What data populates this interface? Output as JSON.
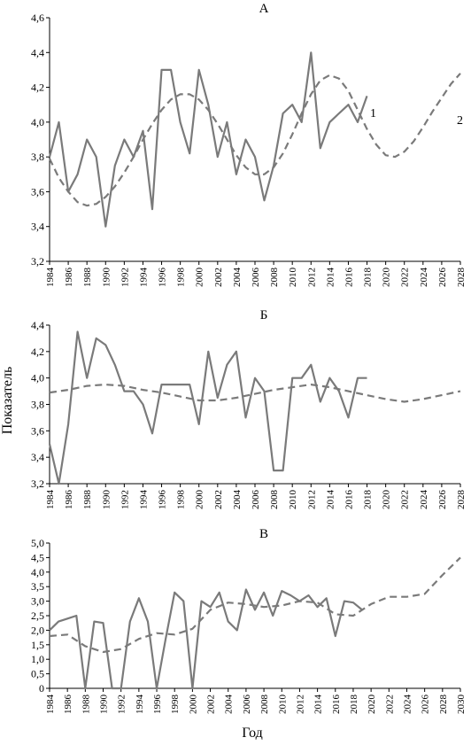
{
  "figure": {
    "ylabel": "Показатель",
    "xlabel": "Год"
  },
  "chart_data": [
    {
      "type": "line",
      "title": "А",
      "ylim": [
        3.2,
        4.6
      ],
      "yticks": [
        "3,2",
        "3,4",
        "3,6",
        "3,8",
        "4,0",
        "4,2",
        "4,4",
        "4,6"
      ],
      "xlim": [
        1984,
        2028
      ],
      "xticks": [
        "1984",
        "1986",
        "1988",
        "1990",
        "1992",
        "1994",
        "1996",
        "1998",
        "2000",
        "2002",
        "2004",
        "2006",
        "2008",
        "2010",
        "2012",
        "2014",
        "2016",
        "2018",
        "2020",
        "2022",
        "2024",
        "2026",
        "2028"
      ],
      "series": [
        {
          "name": "1",
          "style": "solid",
          "color": "#7a7a7a",
          "x": [
            1984,
            1985,
            1986,
            1987,
            1988,
            1989,
            1990,
            1991,
            1992,
            1993,
            1994,
            1995,
            1996,
            1997,
            1998,
            1999,
            2000,
            2001,
            2002,
            2003,
            2004,
            2005,
            2006,
            2007,
            2008,
            2009,
            2010,
            2011,
            2012,
            2013,
            2014,
            2015,
            2016,
            2017,
            2018
          ],
          "y": [
            3.8,
            4.0,
            3.6,
            3.7,
            3.9,
            3.8,
            3.4,
            3.75,
            3.9,
            3.8,
            3.95,
            3.5,
            4.3,
            4.3,
            4.0,
            3.82,
            4.3,
            4.1,
            3.8,
            4.0,
            3.7,
            3.9,
            3.8,
            3.55,
            3.75,
            4.05,
            4.1,
            4.0,
            4.4,
            3.85,
            4.0,
            4.05,
            4.1,
            4.0,
            4.15
          ]
        },
        {
          "name": "2",
          "style": "dashed",
          "color": "#7a7a7a",
          "x": [
            1984,
            1985,
            1986,
            1987,
            1988,
            1989,
            1990,
            1991,
            1992,
            1993,
            1994,
            1995,
            1996,
            1997,
            1998,
            1999,
            2000,
            2001,
            2002,
            2003,
            2004,
            2005,
            2006,
            2007,
            2008,
            2009,
            2010,
            2011,
            2012,
            2013,
            2014,
            2015,
            2016,
            2017,
            2018,
            2019,
            2020,
            2021,
            2022,
            2023,
            2024,
            2025,
            2026,
            2027,
            2028
          ],
          "y": [
            3.79,
            3.68,
            3.6,
            3.54,
            3.52,
            3.53,
            3.57,
            3.63,
            3.71,
            3.8,
            3.9,
            3.99,
            4.07,
            4.13,
            4.16,
            4.16,
            4.13,
            4.07,
            3.99,
            3.9,
            3.81,
            3.74,
            3.7,
            3.7,
            3.74,
            3.82,
            3.93,
            4.05,
            4.16,
            4.24,
            4.27,
            4.25,
            4.18,
            4.07,
            3.96,
            3.87,
            3.81,
            3.8,
            3.83,
            3.89,
            3.97,
            4.06,
            4.14,
            4.22,
            4.28
          ]
        }
      ]
    },
    {
      "type": "line",
      "title": "Б",
      "ylim": [
        3.2,
        4.4
      ],
      "yticks": [
        "3,2",
        "3,4",
        "3,6",
        "3,8",
        "4,0",
        "4,2",
        "4,4"
      ],
      "xlim": [
        1984,
        2028
      ],
      "xticks": [
        "1984",
        "1986",
        "1988",
        "1990",
        "1992",
        "1994",
        "1996",
        "1998",
        "2000",
        "2002",
        "2004",
        "2006",
        "2008",
        "2010",
        "2012",
        "2014",
        "2016",
        "2018",
        "2020",
        "2022",
        "2024",
        "2026",
        "2028"
      ],
      "series": [
        {
          "style": "solid",
          "color": "#7a7a7a",
          "x": [
            1984,
            1985,
            1986,
            1987,
            1988,
            1989,
            1990,
            1991,
            1992,
            1993,
            1994,
            1995,
            1996,
            1997,
            1998,
            1999,
            2000,
            2001,
            2002,
            2003,
            2004,
            2005,
            2006,
            2007,
            2008,
            2009,
            2010,
            2011,
            2012,
            2013,
            2014,
            2015,
            2016,
            2017,
            2018
          ],
          "y": [
            3.5,
            3.2,
            3.65,
            4.35,
            4.0,
            4.3,
            4.25,
            4.1,
            3.9,
            3.9,
            3.8,
            3.58,
            3.95,
            3.95,
            3.95,
            3.95,
            3.65,
            4.2,
            3.85,
            4.1,
            4.2,
            3.7,
            4.0,
            3.9,
            3.3,
            3.3,
            4.0,
            4.0,
            4.1,
            3.82,
            4.0,
            3.9,
            3.7,
            4.0,
            4.0
          ]
        },
        {
          "style": "dashed",
          "color": "#7a7a7a",
          "x": [
            1984,
            1986,
            1988,
            1990,
            1992,
            1994,
            1996,
            1998,
            2000,
            2002,
            2004,
            2006,
            2008,
            2010,
            2012,
            2014,
            2016,
            2018,
            2020,
            2022,
            2024,
            2026,
            2028
          ],
          "y": [
            3.89,
            3.91,
            3.94,
            3.95,
            3.94,
            3.91,
            3.89,
            3.86,
            3.83,
            3.83,
            3.85,
            3.88,
            3.91,
            3.93,
            3.95,
            3.93,
            3.9,
            3.87,
            3.84,
            3.82,
            3.84,
            3.87,
            3.9
          ]
        }
      ]
    },
    {
      "type": "line",
      "title": "В",
      "ylim": [
        0,
        5.0
      ],
      "yticks": [
        "0",
        "0,5",
        "1,0",
        "1,5",
        "2,0",
        "2,5",
        "3,0",
        "3,5",
        "4,0",
        "4,5",
        "5,0"
      ],
      "xlim": [
        1984,
        2030
      ],
      "xticks": [
        "1984",
        "1986",
        "1988",
        "1990",
        "1992",
        "1994",
        "1996",
        "1998",
        "2000",
        "2002",
        "2004",
        "2006",
        "2008",
        "2010",
        "2012",
        "2014",
        "2016",
        "2018",
        "2020",
        "2022",
        "2024",
        "2026",
        "2028",
        "2030"
      ],
      "series": [
        {
          "style": "solid",
          "color": "#7a7a7a",
          "x": [
            1984,
            1985,
            1986,
            1987,
            1988,
            1989,
            1990,
            1991,
            1992,
            1993,
            1994,
            1995,
            1996,
            1997,
            1998,
            1999,
            2000,
            2001,
            2002,
            2003,
            2004,
            2005,
            2006,
            2007,
            2008,
            2009,
            2010,
            2011,
            2012,
            2013,
            2014,
            2015,
            2016,
            2017,
            2018,
            2019
          ],
          "y": [
            2.0,
            2.3,
            2.4,
            2.5,
            0.0,
            2.3,
            2.25,
            0.0,
            0.0,
            2.3,
            3.1,
            2.3,
            0.0,
            1.7,
            3.3,
            3.0,
            0.0,
            3.0,
            2.8,
            3.3,
            2.3,
            2.0,
            3.4,
            2.7,
            3.3,
            2.5,
            3.35,
            3.2,
            3.0,
            3.2,
            2.8,
            3.1,
            1.8,
            3.0,
            2.95,
            2.7
          ]
        },
        {
          "style": "dashed",
          "color": "#7a7a7a",
          "x": [
            1984,
            1986,
            1988,
            1990,
            1992,
            1994,
            1996,
            1998,
            2000,
            2002,
            2004,
            2006,
            2008,
            2010,
            2012,
            2014,
            2016,
            2018,
            2020,
            2022,
            2024,
            2026,
            2028,
            2030
          ],
          "y": [
            1.8,
            1.85,
            1.45,
            1.25,
            1.35,
            1.7,
            1.9,
            1.85,
            2.05,
            2.7,
            2.95,
            2.9,
            2.8,
            2.85,
            3.0,
            2.95,
            2.55,
            2.5,
            2.9,
            3.15,
            3.15,
            3.25,
            3.9,
            4.5
          ]
        }
      ]
    }
  ]
}
